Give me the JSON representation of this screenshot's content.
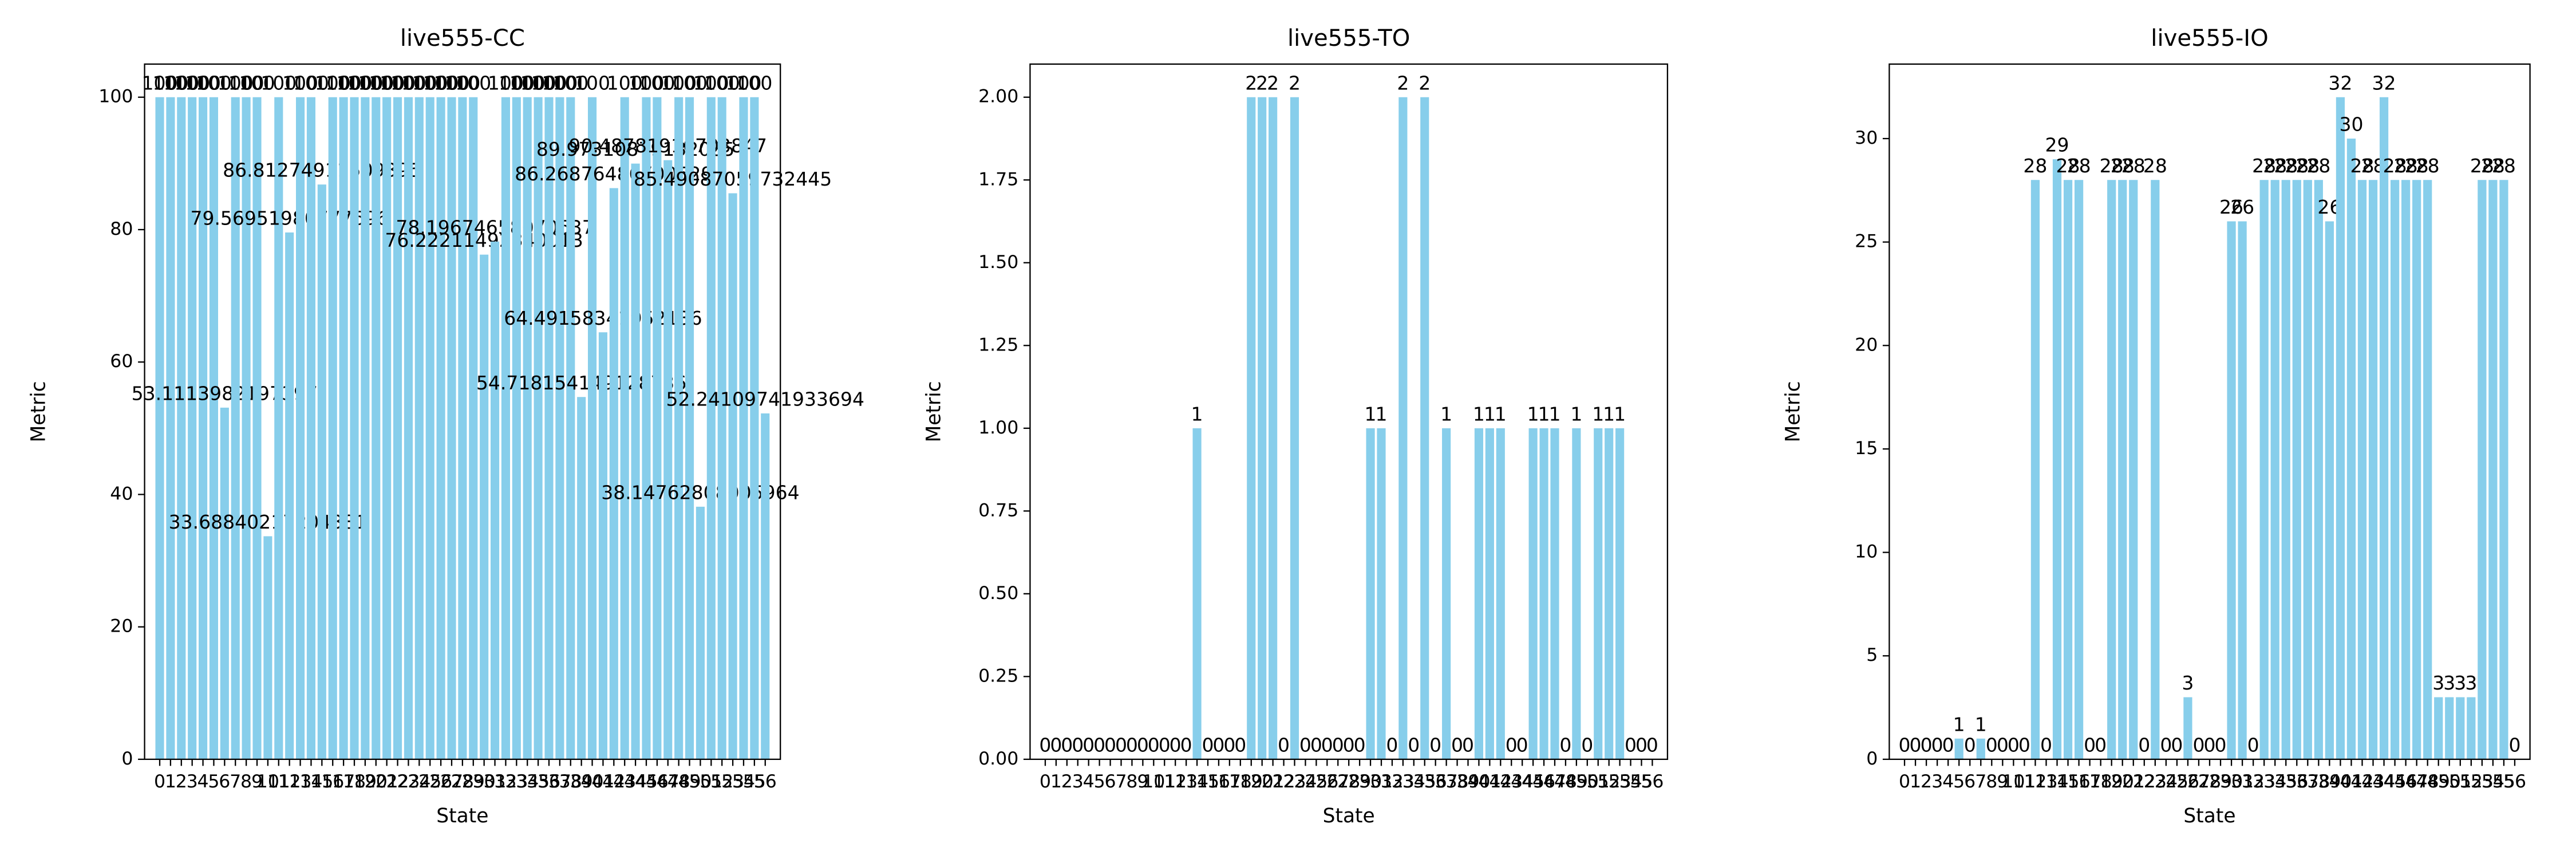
{
  "chart_data": [
    {
      "type": "bar",
      "title": "live555-CC",
      "xlabel": "State",
      "ylabel": "Metric",
      "color": "#87ceeb",
      "categories": [
        0,
        1,
        2,
        3,
        4,
        5,
        6,
        7,
        8,
        9,
        10,
        11,
        12,
        13,
        14,
        15,
        16,
        17,
        18,
        19,
        20,
        21,
        22,
        23,
        24,
        25,
        26,
        27,
        28,
        29,
        30,
        31,
        32,
        33,
        34,
        35,
        36,
        37,
        38,
        39,
        40,
        41,
        42,
        43,
        44,
        45,
        46,
        47,
        48,
        49,
        50,
        51,
        52,
        53,
        54,
        55,
        56
      ],
      "values": [
        100,
        100,
        100,
        100,
        100,
        100,
        53.1113982197397,
        100,
        100,
        100,
        33.68840217204381,
        100,
        79.56951980777696,
        100,
        100,
        86.81274911509395,
        100,
        100,
        100,
        100,
        100,
        100,
        100,
        100,
        100,
        100,
        100,
        100,
        100,
        100,
        76.22211492340013,
        78.19674658070637,
        100,
        100,
        100,
        100,
        100,
        100,
        100,
        54.718154149128736,
        100,
        64.49158341952136,
        86.26876486700529,
        100,
        89.97310879132085,
        100,
        100,
        90.48781916703847,
        100,
        100,
        38.14762808005964,
        100,
        100,
        85.49087059732445,
        100,
        100,
        52.24109741933694
      ],
      "ylim": [
        0,
        105
      ],
      "yticks": [
        0,
        20,
        40,
        60,
        80,
        100
      ]
    },
    {
      "type": "bar",
      "title": "live555-TO",
      "xlabel": "State",
      "ylabel": "Metric",
      "color": "#87ceeb",
      "categories": [
        0,
        1,
        2,
        3,
        4,
        5,
        6,
        7,
        8,
        9,
        10,
        11,
        12,
        13,
        14,
        15,
        16,
        17,
        18,
        19,
        20,
        21,
        22,
        23,
        24,
        25,
        26,
        27,
        28,
        29,
        30,
        31,
        32,
        33,
        34,
        35,
        36,
        37,
        38,
        39,
        40,
        41,
        42,
        43,
        44,
        45,
        46,
        47,
        48,
        49,
        50,
        51,
        52,
        53,
        54,
        55,
        56
      ],
      "values": [
        0,
        0,
        0,
        0,
        0,
        0,
        0,
        0,
        0,
        0,
        0,
        0,
        0,
        0,
        1,
        0,
        0,
        0,
        0,
        2,
        2,
        2,
        0,
        2,
        0,
        0,
        0,
        0,
        0,
        0,
        1,
        1,
        0,
        2,
        0,
        2,
        0,
        1,
        0,
        0,
        1,
        1,
        1,
        0,
        0,
        1,
        1,
        1,
        0,
        1,
        0,
        1,
        1,
        1,
        0,
        0,
        0
      ],
      "ylim": [
        0,
        2.1
      ],
      "yticks": [
        {
          "value": 0,
          "label": "0.00"
        },
        {
          "value": 0.25,
          "label": "0.25"
        },
        {
          "value": 0.5,
          "label": "0.50"
        },
        {
          "value": 0.75,
          "label": "0.75"
        },
        {
          "value": 1,
          "label": "1.00"
        },
        {
          "value": 1.25,
          "label": "1.25"
        },
        {
          "value": 1.5,
          "label": "1.50"
        },
        {
          "value": 1.75,
          "label": "1.75"
        },
        {
          "value": 2,
          "label": "2.00"
        }
      ]
    },
    {
      "type": "bar",
      "title": "live555-IO",
      "xlabel": "State",
      "ylabel": "Metric",
      "color": "#87ceeb",
      "categories": [
        0,
        1,
        2,
        3,
        4,
        5,
        6,
        7,
        8,
        9,
        10,
        11,
        12,
        13,
        14,
        15,
        16,
        17,
        18,
        19,
        20,
        21,
        22,
        23,
        24,
        25,
        26,
        27,
        28,
        29,
        30,
        31,
        32,
        33,
        34,
        35,
        36,
        37,
        38,
        39,
        40,
        41,
        42,
        43,
        44,
        45,
        46,
        47,
        48,
        49,
        50,
        51,
        52,
        53,
        54,
        55,
        56
      ],
      "values": [
        0,
        0,
        0,
        0,
        0,
        1,
        0,
        1,
        0,
        0,
        0,
        0,
        28,
        0,
        29,
        28,
        28,
        0,
        0,
        28,
        28,
        28,
        0,
        28,
        0,
        0,
        3,
        0,
        0,
        0,
        26,
        26,
        0,
        28,
        28,
        28,
        28,
        28,
        28,
        26,
        32,
        30,
        28,
        28,
        32,
        28,
        28,
        28,
        28,
        3,
        3,
        3,
        3,
        28,
        28,
        28,
        0
      ],
      "ylim": [
        0,
        33.6
      ],
      "yticks": [
        0,
        5,
        10,
        15,
        20,
        25,
        30
      ]
    }
  ]
}
